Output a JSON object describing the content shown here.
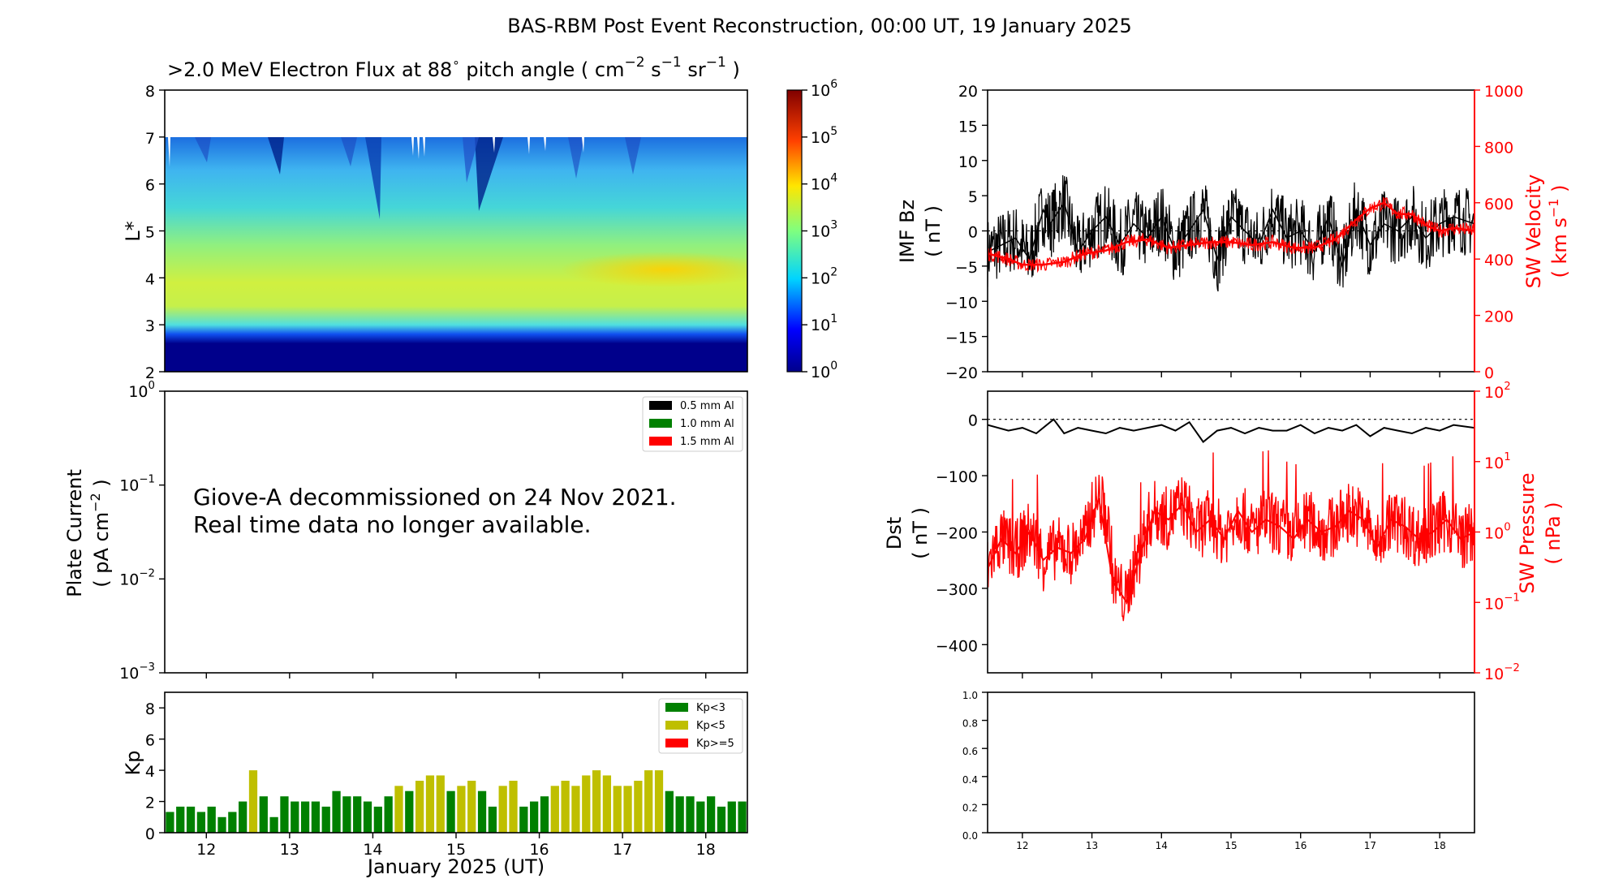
{
  "page_title": "BAS-RBM Post Event Reconstruction, 00:00 UT, 19 January 2025",
  "colors": {
    "black": "#000000",
    "red": "#ff0000",
    "kp_green": "#008000",
    "kp_yellow": "#bfbf00"
  },
  "chart_data": [
    {
      "id": "flux",
      "type": "heatmap",
      "title_main": ">2.0 MeV Electron Flux at 88",
      "title_deg": "∘",
      "title_units_pre": "pitch angle ( cm",
      "title_units_close": ")",
      "ylabel": "L*",
      "ylim": [
        2,
        8
      ],
      "yticks": [
        "2",
        "3",
        "4",
        "5",
        "6",
        "7",
        "8"
      ],
      "xlim": [
        11.5,
        18.5
      ],
      "colorbar": {
        "scale": "log",
        "range": [
          1,
          1000000
        ],
        "ticks": [
          "10",
          "10",
          "10",
          "10",
          "10",
          "10",
          "10"
        ],
        "tick_exps": [
          "0",
          "1",
          "2",
          "3",
          "4",
          "5",
          "6"
        ]
      },
      "description_bins": {
        "inner_belt_L": [
          2,
          3.2
        ],
        "peak_L": 4.2,
        "outer_limit_L": 7
      }
    },
    {
      "id": "plate",
      "type": "line",
      "ylabel_line1": "Plate Current",
      "ylabel_line2": "( pA cm",
      "yscale": "log",
      "ylim": [
        0.001,
        1
      ],
      "yticks": [
        {
          "base": "10",
          "exp": "0"
        },
        {
          "base": "10",
          "exp": "−1"
        },
        {
          "base": "10",
          "exp": "−2"
        },
        {
          "base": "10",
          "exp": "−3"
        }
      ],
      "legend": [
        {
          "label": "0.5 mm Al",
          "color": "#000000"
        },
        {
          "label": "1.0 mm Al",
          "color": "#008000"
        },
        {
          "label": "1.5 mm Al",
          "color": "#ff0000"
        }
      ],
      "annotation_line1": "Giove-A decommissioned on 24 Nov 2021.",
      "annotation_line2": "Real time data no longer available.",
      "series": []
    },
    {
      "id": "kp",
      "type": "bar",
      "ylabel": "Kp",
      "ylim": [
        0,
        9
      ],
      "yticks": [
        "0",
        "2",
        "4",
        "6",
        "8"
      ],
      "xlim": [
        11.5,
        18.5
      ],
      "xlabel": "January 2025 (UT)",
      "xticks": [
        "12",
        "13",
        "14",
        "15",
        "16",
        "17",
        "18"
      ],
      "bar_width_days": 0.1,
      "legend": [
        {
          "label": "Kp<3",
          "color": "#008000"
        },
        {
          "label": "Kp<5",
          "color": "#bfbf00"
        },
        {
          "label": "Kp>=5",
          "color": "#ff0000"
        }
      ],
      "values": [
        1.33,
        1.67,
        1.67,
        1.33,
        1.67,
        1.0,
        1.33,
        2.0,
        4.0,
        2.33,
        1.0,
        2.33,
        2.0,
        2.0,
        2.0,
        1.67,
        2.67,
        2.33,
        2.33,
        2.0,
        1.67,
        2.33,
        3.0,
        2.67,
        3.33,
        3.67,
        3.67,
        2.67,
        3.0,
        3.33,
        2.67,
        1.67,
        3.0,
        3.33,
        1.67,
        2.0,
        2.33,
        3.0,
        3.33,
        3.0,
        3.67,
        4.0,
        3.67,
        3.0,
        3.0,
        3.33,
        4.0,
        4.0,
        2.67,
        2.33,
        2.33,
        2.0,
        2.33,
        1.67,
        2.0,
        2.0
      ]
    },
    {
      "id": "imf",
      "type": "line",
      "ylabel_line1": "IMF Bz",
      "ylabel_line2": "( nT )",
      "ylim": [
        -20,
        20
      ],
      "yticks": [
        "−20",
        "−15",
        "−10",
        "−5",
        "0",
        "5",
        "10",
        "15",
        "20"
      ],
      "xlim": [
        11.5,
        18.5
      ],
      "series": [
        {
          "name": "IMF Bz",
          "color": "#000000",
          "x": [
            11.5,
            11.7,
            11.9,
            12.1,
            12.3,
            12.4,
            12.6,
            12.8,
            13.0,
            13.2,
            13.4,
            13.6,
            13.8,
            14.0,
            14.2,
            14.4,
            14.6,
            14.8,
            15.0,
            15.2,
            15.4,
            15.6,
            15.8,
            16.0,
            16.2,
            16.4,
            16.6,
            16.8,
            17.0,
            17.2,
            17.4,
            17.6,
            17.8,
            18.0,
            18.2,
            18.5
          ],
          "y": [
            -3,
            -2,
            -1,
            -4,
            3,
            1,
            4,
            -3,
            0,
            2,
            -2,
            1,
            -1,
            2,
            -3,
            0,
            3,
            -4,
            2,
            0,
            -2,
            3,
            -1,
            0,
            -3,
            2,
            -5,
            3,
            -2,
            1,
            0,
            2,
            -1,
            1,
            2,
            1
          ]
        },
        {
          "name": "SW Velocity",
          "color": "#ff0000",
          "axis": "right",
          "x": [
            11.5,
            11.8,
            12.0,
            12.3,
            12.6,
            12.9,
            13.2,
            13.5,
            13.8,
            14.1,
            14.4,
            14.7,
            15.0,
            15.3,
            15.6,
            15.9,
            16.2,
            16.5,
            16.8,
            17.0,
            17.2,
            17.4,
            17.6,
            17.8,
            18.0,
            18.2,
            18.5
          ],
          "y": [
            420,
            400,
            380,
            380,
            390,
            420,
            430,
            460,
            470,
            440,
            450,
            460,
            460,
            450,
            460,
            440,
            440,
            470,
            540,
            580,
            600,
            560,
            560,
            520,
            500,
            510,
            500
          ]
        }
      ],
      "right_axis": {
        "label_line1": "SW Velocity",
        "label_line2": "( km s",
        "ylim": [
          0,
          1000
        ],
        "yticks": [
          "0",
          "200",
          "400",
          "600",
          "800",
          "1000"
        ]
      }
    },
    {
      "id": "dst",
      "type": "line",
      "ylabel_line1": "Dst",
      "ylabel_line2": "( nT )",
      "ylim": [
        -450,
        50
      ],
      "yticks": [
        "0",
        "−100",
        "−200",
        "−300",
        "−400"
      ],
      "xlim": [
        11.5,
        18.5
      ],
      "series": [
        {
          "name": "Dst",
          "color": "#000000",
          "x": [
            11.5,
            11.8,
            12.0,
            12.2,
            12.45,
            12.6,
            12.8,
            13.0,
            13.2,
            13.4,
            13.6,
            13.8,
            14.0,
            14.2,
            14.4,
            14.6,
            14.8,
            15.0,
            15.2,
            15.4,
            15.6,
            15.8,
            16.0,
            16.2,
            16.4,
            16.6,
            16.8,
            17.0,
            17.2,
            17.4,
            17.6,
            17.8,
            18.0,
            18.2,
            18.5
          ],
          "y": [
            -10,
            -20,
            -15,
            -25,
            0,
            -25,
            -15,
            -20,
            -25,
            -15,
            -20,
            -15,
            -10,
            -20,
            -5,
            -40,
            -20,
            -15,
            -25,
            -15,
            -20,
            -20,
            -10,
            -25,
            -15,
            -20,
            -10,
            -30,
            -15,
            -20,
            -25,
            -15,
            -20,
            -10,
            -15
          ]
        },
        {
          "name": "SW Pressure",
          "color": "#ff0000",
          "axis": "right",
          "x": [
            11.5,
            11.7,
            11.9,
            12.1,
            12.3,
            12.5,
            12.7,
            12.9,
            13.1,
            13.3,
            13.5,
            13.7,
            13.9,
            14.1,
            14.3,
            14.5,
            14.7,
            14.9,
            15.1,
            15.3,
            15.5,
            15.7,
            15.9,
            16.1,
            16.3,
            16.5,
            16.7,
            16.9,
            17.1,
            17.3,
            17.5,
            17.7,
            17.9,
            18.1,
            18.3,
            18.5
          ],
          "y": [
            0.3,
            0.8,
            0.5,
            1.0,
            0.4,
            0.6,
            0.5,
            0.8,
            3.0,
            0.2,
            0.1,
            0.5,
            2.0,
            1.5,
            2.5,
            1.0,
            1.5,
            0.8,
            2.0,
            1.0,
            1.5,
            1.2,
            0.8,
            1.5,
            1.0,
            1.2,
            2.0,
            1.5,
            0.6,
            1.5,
            1.2,
            0.8,
            1.0,
            1.5,
            0.8,
            1.0
          ]
        }
      ],
      "right_axis": {
        "label_line1": "SW Pressure",
        "label_line2": "( nPa )",
        "yscale": "log",
        "ylim": [
          0.01,
          100
        ],
        "yticks": [
          {
            "base": "10",
            "exp": "2"
          },
          {
            "base": "10",
            "exp": "1"
          },
          {
            "base": "10",
            "exp": "0"
          },
          {
            "base": "10",
            "exp": "−1"
          },
          {
            "base": "10",
            "exp": "−2"
          }
        ]
      }
    },
    {
      "id": "empty",
      "type": "line",
      "ylim": [
        0,
        1
      ],
      "yticks": [
        "0.0",
        "0.2",
        "0.4",
        "0.6",
        "0.8",
        "1.0"
      ],
      "xlim": [
        11.5,
        18.5
      ],
      "xticks": [
        "12",
        "13",
        "14",
        "15",
        "16",
        "17",
        "18"
      ],
      "series": []
    }
  ]
}
